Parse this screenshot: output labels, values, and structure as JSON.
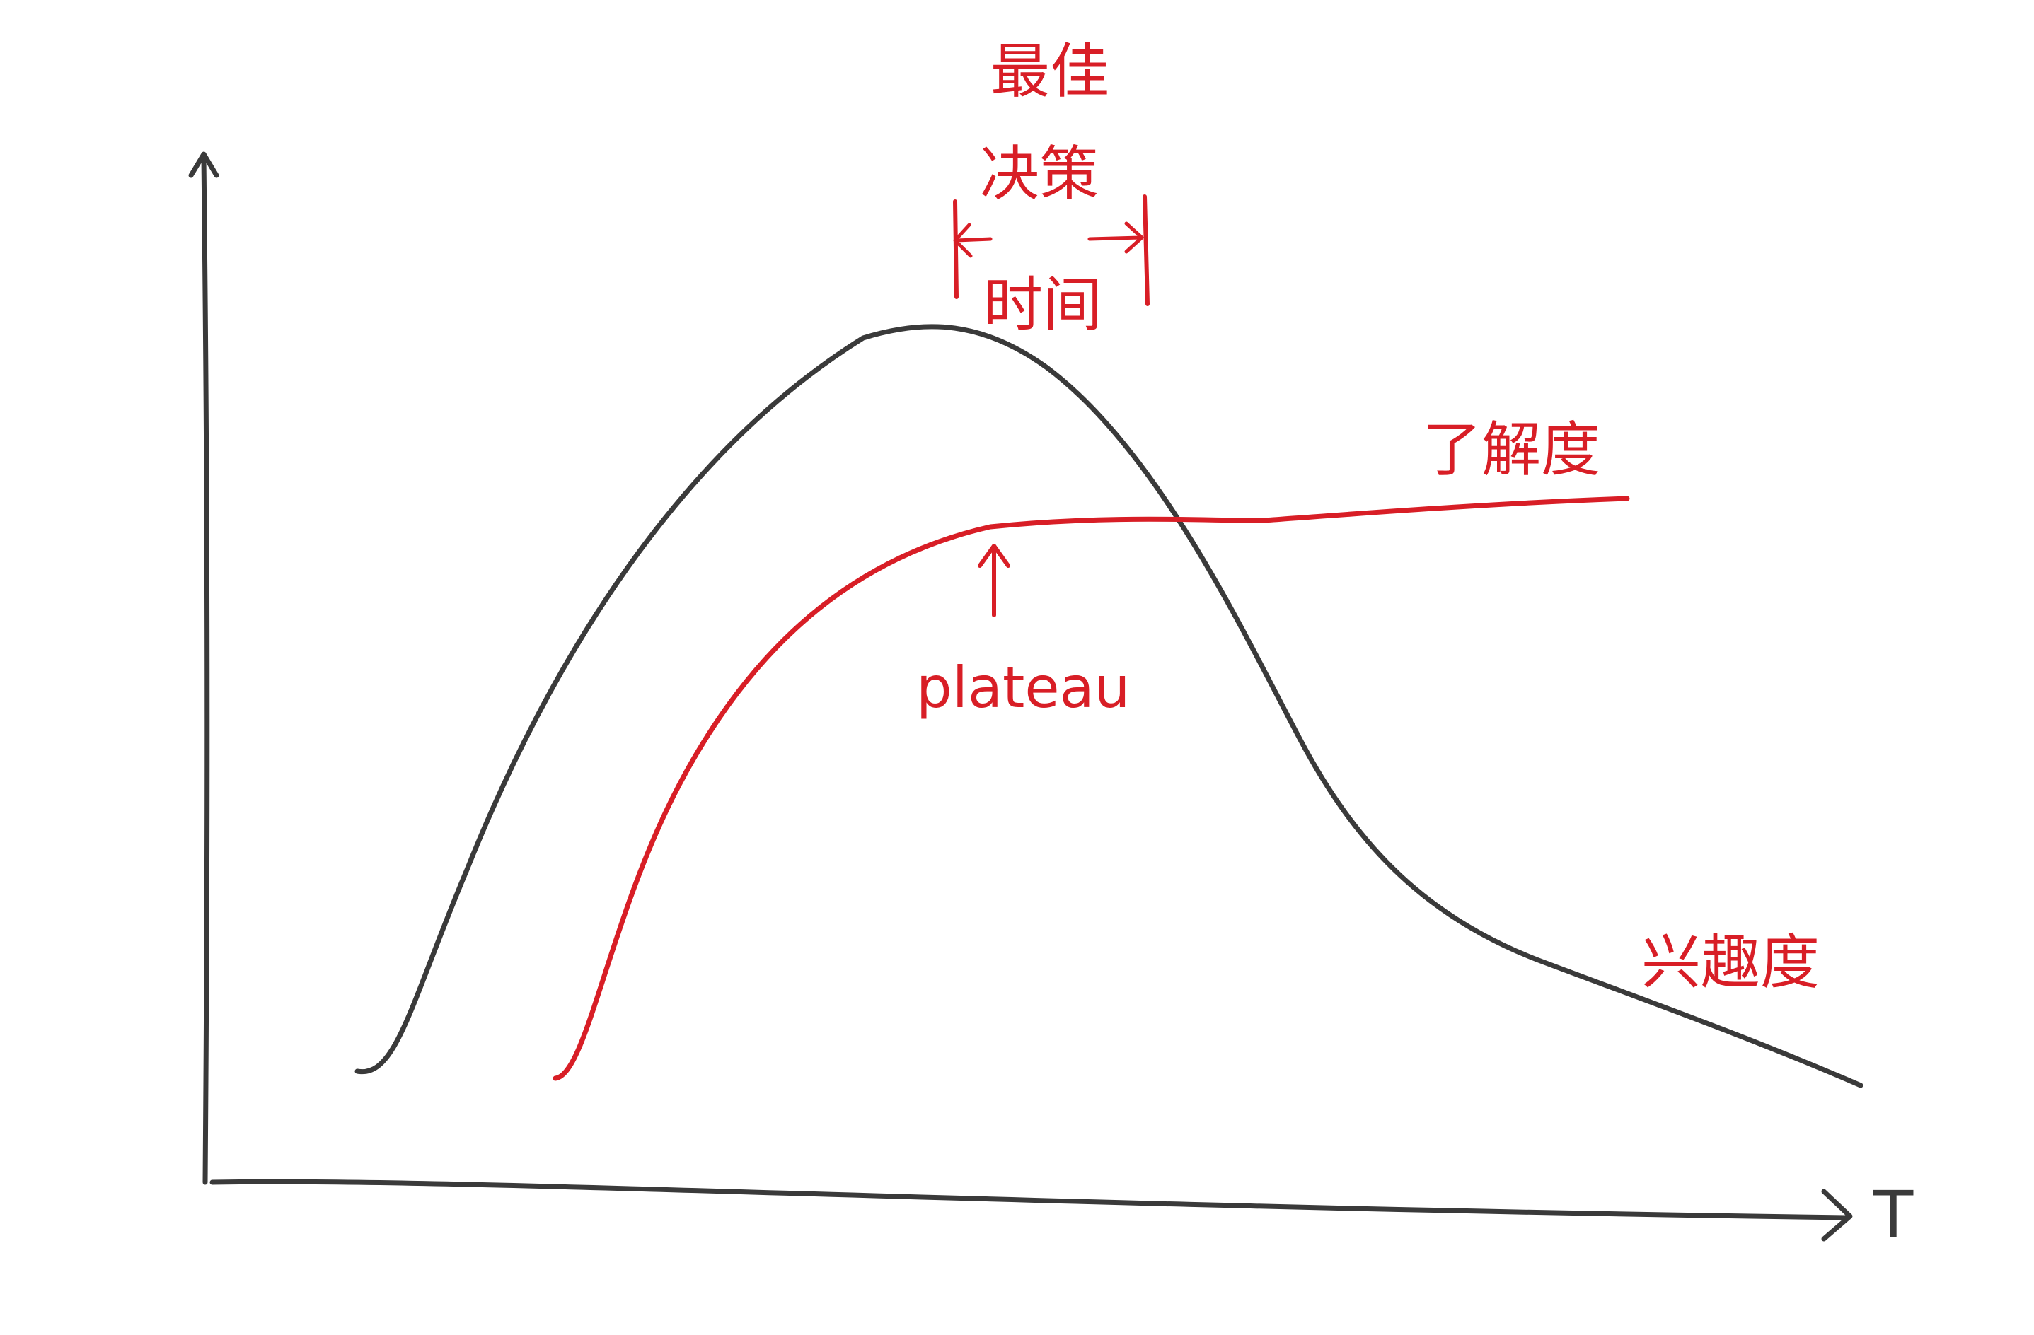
{
  "diagram": {
    "annotations": {
      "optimal_line1": "最佳",
      "optimal_line2": "决策",
      "optimal_line3": "时间",
      "understanding": "了解度",
      "plateau": "plateau",
      "interest": "兴趣度"
    },
    "axes": {
      "x_label": "T",
      "y_label": ""
    },
    "curves": [
      {
        "role": "interest-curve",
        "color": "#3a3a3a"
      },
      {
        "role": "understanding-curve",
        "color": "#d81e26"
      }
    ]
  }
}
